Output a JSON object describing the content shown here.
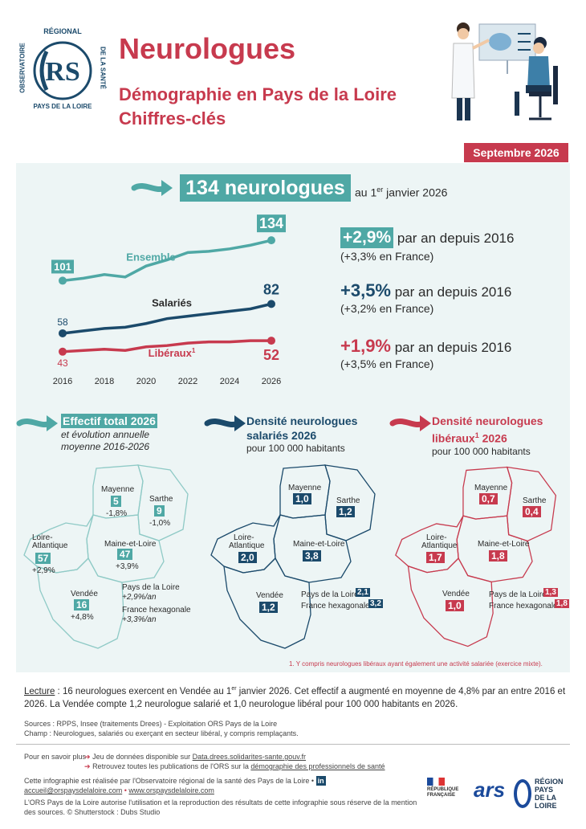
{
  "logo": {
    "arc_top": "RÉGIONAL",
    "left": "OBSERVATOIRE",
    "right": "DE LA SANTÉ",
    "bottom": "PAYS DE LA LOIRE"
  },
  "header": {
    "title": "Neurologues",
    "subtitle_1": "Démographie en Pays de la Loire",
    "subtitle_2": "Chiffres-clés",
    "date": "Septembre 2026"
  },
  "headline": {
    "value": "134 neurologues",
    "pre": "au 1",
    "sup": "er",
    "post": " janvier 2026"
  },
  "chart_data": {
    "type": "line",
    "x": [
      2016,
      2018,
      2020,
      2022,
      2024,
      2026
    ],
    "xticks": [
      "2016",
      "2018",
      "2020",
      "2022",
      "2024",
      "2026"
    ],
    "ylim": [
      35,
      140
    ],
    "series": [
      {
        "name": "Ensemble",
        "color": "#4fa8a5",
        "points": [
          [
            2016,
            101
          ],
          [
            2017,
            103
          ],
          [
            2018,
            106
          ],
          [
            2019,
            104
          ],
          [
            2020,
            113
          ],
          [
            2021,
            118
          ],
          [
            2022,
            124
          ],
          [
            2023,
            125
          ],
          [
            2024,
            127
          ],
          [
            2025,
            130
          ],
          [
            2026,
            134
          ]
        ],
        "start_label": "101",
        "end_label": "134"
      },
      {
        "name": "Salariés",
        "color": "#1b4a6b",
        "points": [
          [
            2016,
            58
          ],
          [
            2017,
            60
          ],
          [
            2018,
            62
          ],
          [
            2019,
            63
          ],
          [
            2020,
            66
          ],
          [
            2021,
            70
          ],
          [
            2022,
            72
          ],
          [
            2023,
            74
          ],
          [
            2024,
            76
          ],
          [
            2025,
            78
          ],
          [
            2026,
            82
          ]
        ],
        "start_label": "58",
        "end_label": "82"
      },
      {
        "name": "Libéraux",
        "name_sup": "1",
        "color": "#c73a4e",
        "points": [
          [
            2016,
            43
          ],
          [
            2017,
            44
          ],
          [
            2018,
            45
          ],
          [
            2019,
            44
          ],
          [
            2020,
            47
          ],
          [
            2021,
            48
          ],
          [
            2022,
            50
          ],
          [
            2023,
            51
          ],
          [
            2024,
            51
          ],
          [
            2025,
            52
          ],
          [
            2026,
            52
          ]
        ],
        "start_label": "43",
        "end_label": "52"
      }
    ]
  },
  "stats": [
    {
      "value": "+2,9%",
      "text": " par an depuis 2016",
      "sub": "(+3,3% en France)",
      "color": "#4fa8a5",
      "boxed": true
    },
    {
      "value": "+3,5%",
      "text": " par an depuis 2016",
      "sub": "(+3,2% en France)",
      "color": "#1b4a6b",
      "boxed": false
    },
    {
      "value": "+1,9%",
      "text": " par an depuis 2016",
      "sub": "(+3,5% en France)",
      "color": "#c73a4e",
      "boxed": false
    }
  ],
  "map1": {
    "title": "Effectif total 2026",
    "sub1": "et évolution annuelle",
    "sub2": "moyenne 2016-2026",
    "regions": {
      "mayenne": {
        "name": "Mayenne",
        "value": "5",
        "evo": "-1,8%"
      },
      "sarthe": {
        "name": "Sarthe",
        "value": "9",
        "evo": "-1,0%"
      },
      "loire_atl": {
        "name1": "Loire-",
        "name2": "Atlantique",
        "value": "57",
        "evo": "+2,9%"
      },
      "maine": {
        "name": "Maine-et-Loire",
        "value": "47",
        "evo": "+3,9%"
      },
      "vendee": {
        "name": "Vendée",
        "value": "16",
        "evo": "+4,8%"
      }
    },
    "pdl": "Pays de la Loire",
    "pdl_evo": "+2,9%/an",
    "fr": "France hexagonale",
    "fr_evo": "+3,3%/an"
  },
  "map2": {
    "title1": "Densité neurologues",
    "title2": "salariés 2026",
    "sub": "pour 100 000 habitants",
    "regions": {
      "mayenne": "1,0",
      "sarthe": "1,2",
      "loire_atl": "2,0",
      "maine": "3,8",
      "vendee": "1,2"
    },
    "pdl": "Pays de la Loire",
    "pdl_value": "2,1",
    "fr": "France hexagonale",
    "fr_value": "3,2"
  },
  "map3": {
    "title1": "Densité neurologues",
    "title2": "libéraux",
    "title2_sup": "1",
    "title2_post": " 2026",
    "sub": "pour 100 000 habitants",
    "regions": {
      "mayenne": "0,7",
      "sarthe": "0,4",
      "loire_atl": "1,7",
      "maine": "1,8",
      "vendee": "1,0"
    },
    "pdl": "Pays de la Loire",
    "pdl_value": "1,3",
    "fr": "France hexagonale",
    "fr_value": "1,8"
  },
  "map_labels": {
    "mayenne": "Mayenne",
    "sarthe": "Sarthe",
    "loire1": "Loire-",
    "loire2": "Atlantique",
    "maine": "Maine-et-Loire",
    "vendee": "Vendée"
  },
  "footnote": "1. Y compris neurologues libéraux ayant également une activité salariée (exercice mixte).",
  "reading": {
    "label": "Lecture",
    "text1": " : 16 neurologues exercent en Vendée au 1",
    "sup": "er",
    "text2": " janvier 2026. Cet effectif a augmenté en moyenne de 4,8% par an entre 2016 et 2026. La Vendée compte 1,2 neurologue salarié et 1,0 neurologue libéral pour 100 000 habitants en 2026."
  },
  "sources": {
    "line1": "Sources : RPPS, Insee (traitements Drees) - Exploitation ORS Pays de la Loire",
    "line2": "Champ : Neurologues, salariés ou exerçant en secteur libéral, y compris remplaçants."
  },
  "more": {
    "label": "Pour en savoir plus",
    "item1_pre": "Jeu de données disponible sur ",
    "item1_link": "Data.drees.solidarites-sante.gouv.fr",
    "item2_pre": "Retrouvez toutes les publications de l'ORS sur la ",
    "item2_link": "démographie des professionnels de santé"
  },
  "credits": {
    "line1": "Cette infographie est réalisée par l'Observatoire régional de la santé des Pays de la Loire •",
    "email": "accueil@orspaysdelaloire.com",
    "sep": " • ",
    "site": "www.orspaysdelaloire.com",
    "line3": "L'ORS Pays de la Loire autorise l'utilisation et la reproduction des résultats de cette infographie sous réserve de la mention",
    "line4": "des sources. © Shutterstock : Dubs Studio"
  },
  "partners": {
    "rf1": "RÉPUBLIQUE",
    "rf2": "FRANÇAISE",
    "ars": "ars",
    "region1": "RÉGION",
    "region2": "PAYS",
    "region3": "DE LA",
    "region4": "LOIRE"
  },
  "colors": {
    "teal": "#4fa8a5",
    "navy": "#1b4a6b",
    "red": "#c73a4e",
    "panel": "#edf5f5"
  }
}
